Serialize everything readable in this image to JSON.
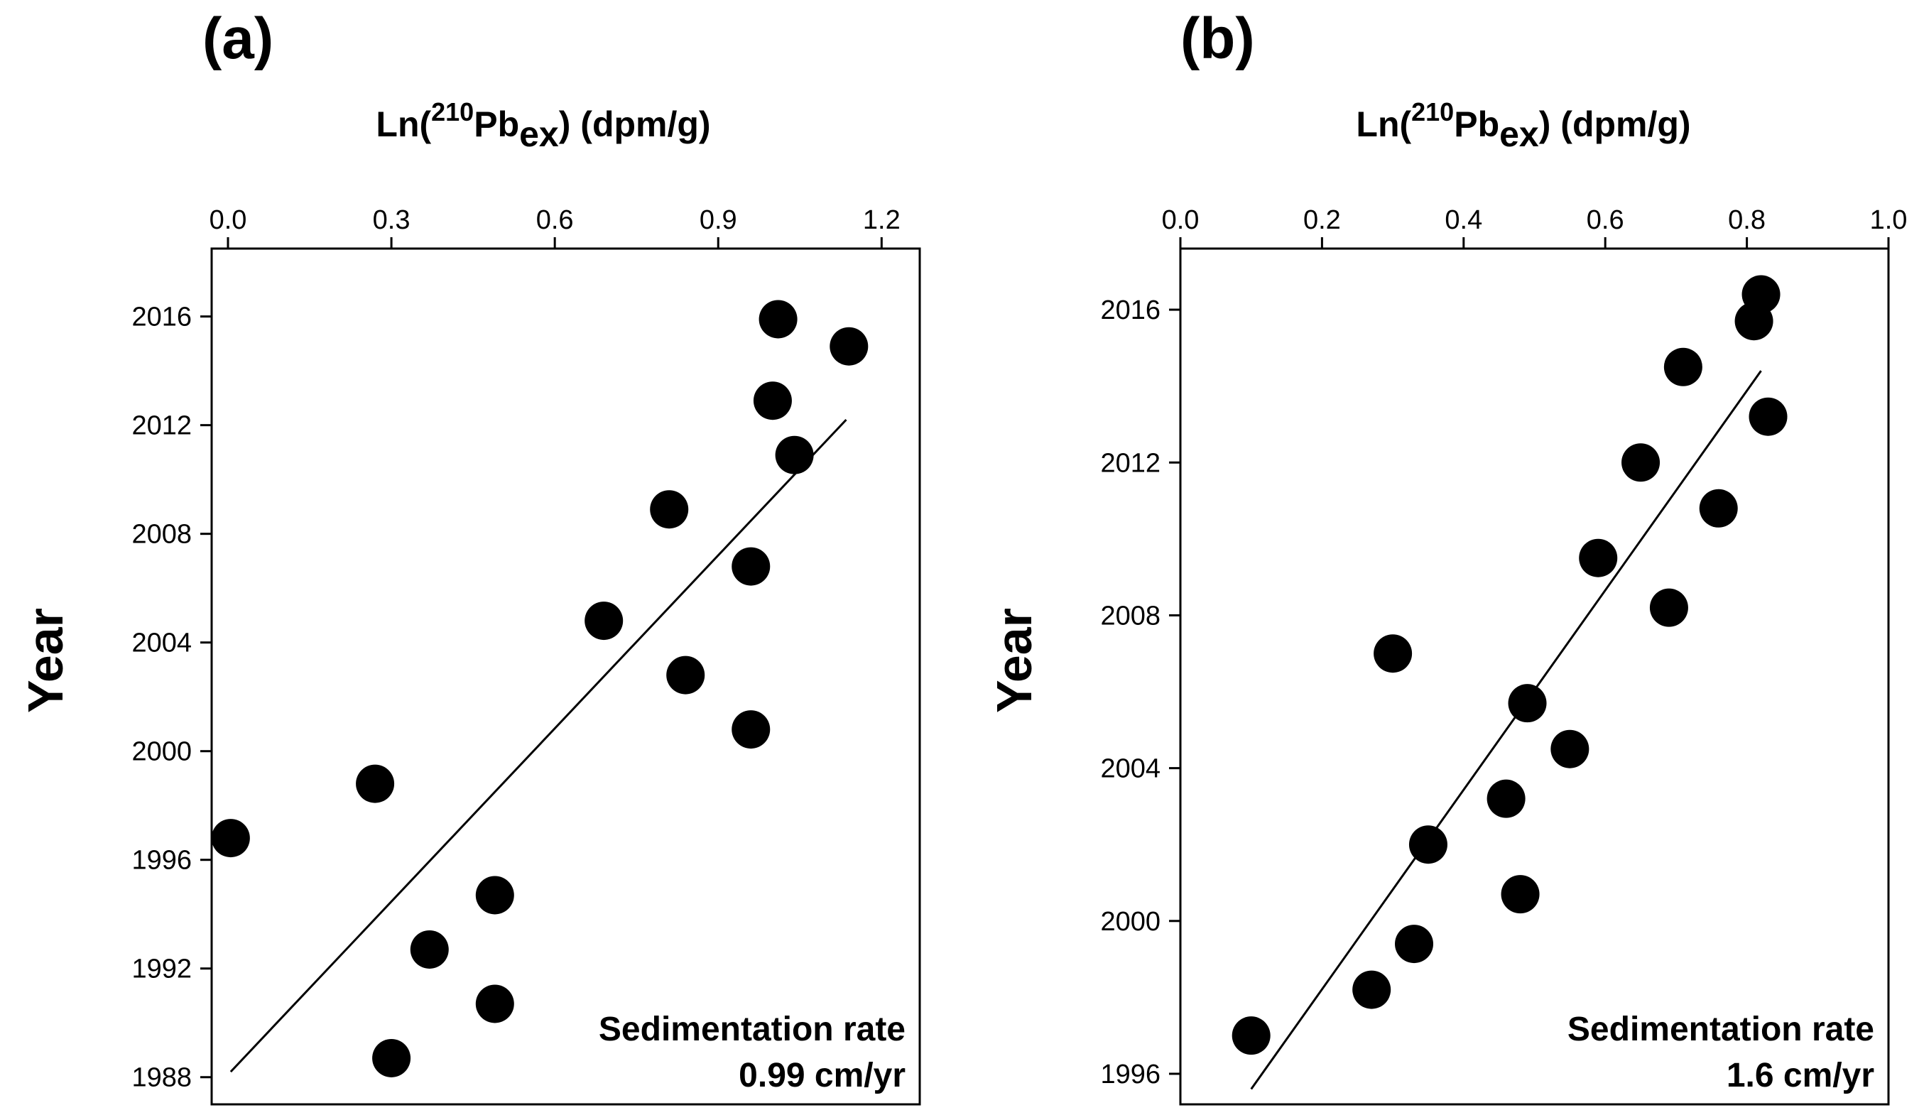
{
  "chart_data": [
    {
      "type": "scatter",
      "panel_label": "(a)",
      "title": "",
      "xlabel": {
        "prefix": "Ln(",
        "superscript": "210",
        "base": "Pb",
        "subscript": "ex",
        "suffix": ") (dpm/g)"
      },
      "ylabel": "Year",
      "xlim": [
        -0.03,
        1.27
      ],
      "ylim": [
        1987,
        2018.5
      ],
      "xticks": [
        0.0,
        0.3,
        0.6,
        0.9,
        1.2
      ],
      "xtick_labels": [
        "0.0",
        "0.3",
        "0.6",
        "0.9",
        "1.2"
      ],
      "yticks": [
        1988,
        1992,
        1996,
        2000,
        2004,
        2008,
        2012,
        2016
      ],
      "ytick_labels": [
        "1988",
        "1992",
        "1996",
        "2000",
        "2004",
        "2008",
        "2012",
        "2016"
      ],
      "x_axis_position": "top",
      "grid": false,
      "series": [
        {
          "name": "data",
          "points": [
            {
              "x": 0.005,
              "y": 1996.8
            },
            {
              "x": 0.27,
              "y": 1998.8
            },
            {
              "x": 0.3,
              "y": 1988.7
            },
            {
              "x": 0.37,
              "y": 1992.7
            },
            {
              "x": 0.49,
              "y": 1994.7
            },
            {
              "x": 0.49,
              "y": 1990.7
            },
            {
              "x": 0.69,
              "y": 2004.8
            },
            {
              "x": 0.81,
              "y": 2008.9
            },
            {
              "x": 0.84,
              "y": 2002.8
            },
            {
              "x": 0.96,
              "y": 2006.8
            },
            {
              "x": 0.96,
              "y": 2000.8
            },
            {
              "x": 1.0,
              "y": 2012.9
            },
            {
              "x": 1.01,
              "y": 2015.9
            },
            {
              "x": 1.04,
              "y": 2010.9
            },
            {
              "x": 1.14,
              "y": 2014.9
            }
          ]
        }
      ],
      "fit_line": {
        "x": [
          0.005,
          1.135
        ],
        "y": [
          1988.2,
          2012.2
        ]
      },
      "annotation": [
        "Sedimentation rate",
        "0.99 cm/yr"
      ]
    },
    {
      "type": "scatter",
      "panel_label": "(b)",
      "title": "",
      "xlabel": {
        "prefix": "Ln(",
        "superscript": "210",
        "base": "Pb",
        "subscript": "ex",
        "suffix": ") (dpm/g)"
      },
      "ylabel": "Year",
      "xlim": [
        0.0,
        1.0
      ],
      "ylim": [
        1995.2,
        2017.6
      ],
      "xticks": [
        0.0,
        0.2,
        0.4,
        0.6,
        0.8,
        1.0
      ],
      "xtick_labels": [
        "0.0",
        "0.2",
        "0.4",
        "0.6",
        "0.8",
        "1.0"
      ],
      "yticks": [
        1996,
        2000,
        2004,
        2008,
        2012,
        2016
      ],
      "ytick_labels": [
        "1996",
        "2000",
        "2004",
        "2008",
        "2012",
        "2016"
      ],
      "x_axis_position": "top",
      "grid": false,
      "series": [
        {
          "name": "data",
          "points": [
            {
              "x": 0.1,
              "y": 1997.0
            },
            {
              "x": 0.27,
              "y": 1998.2
            },
            {
              "x": 0.3,
              "y": 2007.0
            },
            {
              "x": 0.33,
              "y": 1999.4
            },
            {
              "x": 0.35,
              "y": 2002.0
            },
            {
              "x": 0.46,
              "y": 2003.2
            },
            {
              "x": 0.48,
              "y": 2000.7
            },
            {
              "x": 0.49,
              "y": 2005.7
            },
            {
              "x": 0.55,
              "y": 2004.5
            },
            {
              "x": 0.59,
              "y": 2009.5
            },
            {
              "x": 0.65,
              "y": 2012.0
            },
            {
              "x": 0.69,
              "y": 2008.2
            },
            {
              "x": 0.71,
              "y": 2014.5
            },
            {
              "x": 0.76,
              "y": 2010.8
            },
            {
              "x": 0.81,
              "y": 2015.7
            },
            {
              "x": 0.82,
              "y": 2016.4
            },
            {
              "x": 0.83,
              "y": 2013.2
            }
          ]
        }
      ],
      "fit_line": {
        "x": [
          0.1,
          0.82
        ],
        "y": [
          1995.6,
          2014.4
        ]
      },
      "annotation": [
        "Sedimentation rate",
        "1.6 cm/yr"
      ]
    }
  ]
}
